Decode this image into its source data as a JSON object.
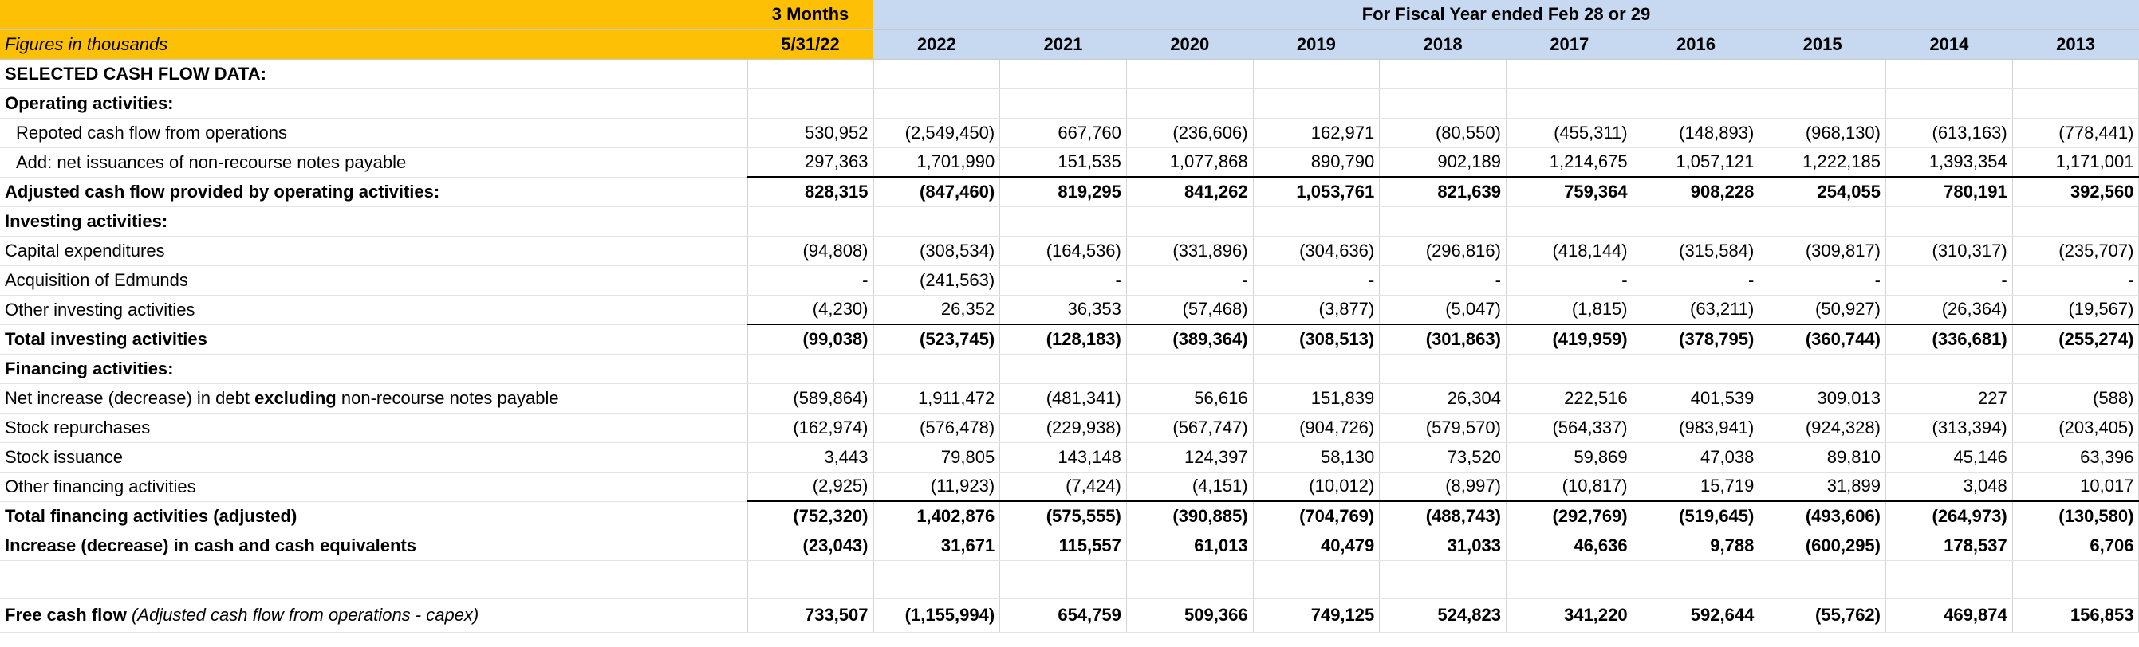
{
  "header": {
    "left_label": "Figures in thousands",
    "q_top": "3 Months",
    "q_bottom": "5/31/22",
    "fy_label": "For Fiscal Year ended Feb 28 or 29",
    "years": [
      "2022",
      "2021",
      "2020",
      "2019",
      "2018",
      "2017",
      "2016",
      "2015",
      "2014",
      "2013"
    ]
  },
  "colors": {
    "orange_header": "#fec005",
    "blue_header": "#c6d9f1"
  },
  "rows": {
    "section_title": "SELECTED CASH FLOW DATA:",
    "operating_heading": "Operating activities:",
    "reported_cfo": {
      "label": "Repoted cash flow from operations",
      "values": [
        "530,952",
        "(2,549,450)",
        "667,760",
        "(236,606)",
        "162,971",
        "(80,550)",
        "(455,311)",
        "(148,893)",
        "(968,130)",
        "(613,163)",
        "(778,441)"
      ]
    },
    "non_recourse": {
      "label": "Add: net issuances of non-recourse notes payable",
      "values": [
        "297,363",
        "1,701,990",
        "151,535",
        "1,077,868",
        "890,790",
        "902,189",
        "1,214,675",
        "1,057,121",
        "1,222,185",
        "1,393,354",
        "1,171,001"
      ]
    },
    "adjusted_cfo": {
      "label": "Adjusted cash flow provided by operating activities:",
      "values": [
        "828,315",
        "(847,460)",
        "819,295",
        "841,262",
        "1,053,761",
        "821,639",
        "759,364",
        "908,228",
        "254,055",
        "780,191",
        "392,560"
      ]
    },
    "investing_heading": "Investing activities:",
    "capex": {
      "label": "Capital expenditures",
      "values": [
        "(94,808)",
        "(308,534)",
        "(164,536)",
        "(331,896)",
        "(304,636)",
        "(296,816)",
        "(418,144)",
        "(315,584)",
        "(309,817)",
        "(310,317)",
        "(235,707)"
      ]
    },
    "edmunds": {
      "label": "Acquisition of Edmunds",
      "values": [
        "-",
        "(241,563)",
        "-",
        "-",
        "-",
        "-",
        "-",
        "-",
        "-",
        "-",
        "-"
      ]
    },
    "other_investing": {
      "label": "Other investing activities",
      "values": [
        "(4,230)",
        "26,352",
        "36,353",
        "(57,468)",
        "(3,877)",
        "(5,047)",
        "(1,815)",
        "(63,211)",
        "(50,927)",
        "(26,364)",
        "(19,567)"
      ]
    },
    "total_investing": {
      "label": "Total investing activities",
      "values": [
        "(99,038)",
        "(523,745)",
        "(128,183)",
        "(389,364)",
        "(308,513)",
        "(301,863)",
        "(419,959)",
        "(378,795)",
        "(360,744)",
        "(336,681)",
        "(255,274)"
      ]
    },
    "financing_heading": "Financing activities:",
    "net_debt": {
      "label_pre": "Net increase (decrease) in debt ",
      "label_bold": "excluding",
      "label_post": " non-recourse notes payable",
      "values": [
        "(589,864)",
        "1,911,472",
        "(481,341)",
        "56,616",
        "151,839",
        "26,304",
        "222,516",
        "401,539",
        "309,013",
        "227",
        "(588)"
      ]
    },
    "repurchases": {
      "label": "Stock repurchases",
      "values": [
        "(162,974)",
        "(576,478)",
        "(229,938)",
        "(567,747)",
        "(904,726)",
        "(579,570)",
        "(564,337)",
        "(983,941)",
        "(924,328)",
        "(313,394)",
        "(203,405)"
      ]
    },
    "issuance": {
      "label": "Stock issuance",
      "values": [
        "3,443",
        "79,805",
        "143,148",
        "124,397",
        "58,130",
        "73,520",
        "59,869",
        "47,038",
        "89,810",
        "45,146",
        "63,396"
      ]
    },
    "other_financing": {
      "label": "Other financing activities",
      "values": [
        "(2,925)",
        "(11,923)",
        "(7,424)",
        "(4,151)",
        "(10,012)",
        "(8,997)",
        "(10,817)",
        "15,719",
        "31,899",
        "3,048",
        "10,017"
      ]
    },
    "total_financing": {
      "label": "Total financing activities (adjusted)",
      "values": [
        "(752,320)",
        "1,402,876",
        "(575,555)",
        "(390,885)",
        "(704,769)",
        "(488,743)",
        "(292,769)",
        "(519,645)",
        "(493,606)",
        "(264,973)",
        "(130,580)"
      ]
    },
    "net_change": {
      "label": "Increase (decrease) in cash and cash equivalents",
      "values": [
        "(23,043)",
        "31,671",
        "115,557",
        "61,013",
        "40,479",
        "31,033",
        "46,636",
        "9,788",
        "(600,295)",
        "178,537",
        "6,706"
      ]
    },
    "fcf": {
      "label_bold": "Free cash flow",
      "label_italic": " (Adjusted cash flow from operations - capex)",
      "values": [
        "733,507",
        "(1,155,994)",
        "654,759",
        "509,366",
        "749,125",
        "524,823",
        "341,220",
        "592,644",
        "(55,762)",
        "469,874",
        "156,853"
      ]
    }
  }
}
